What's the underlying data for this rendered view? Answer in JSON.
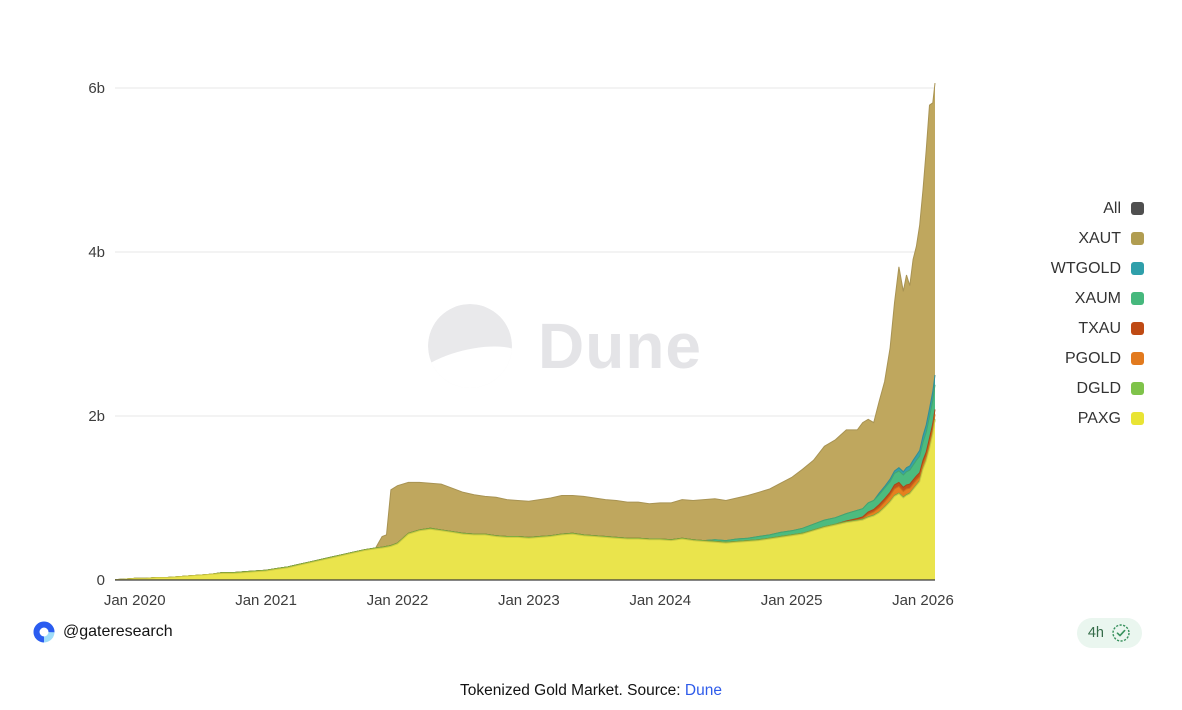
{
  "watermark": {
    "brand": "Dune"
  },
  "footer": {
    "handle": "@gateresearch",
    "badge_time": "4h"
  },
  "caption": {
    "prefix": "Tokenized Gold Market. Source: ",
    "link_text": "Dune"
  },
  "legend": [
    {
      "label": "All",
      "color": "#4f4f4f"
    },
    {
      "label": "XAUT",
      "color": "#b19d51"
    },
    {
      "label": "WTGOLD",
      "color": "#2f9faa"
    },
    {
      "label": "XAUM",
      "color": "#46b87d"
    },
    {
      "label": "TXAU",
      "color": "#bf4a14"
    },
    {
      "label": "PGOLD",
      "color": "#e27a1e"
    },
    {
      "label": "DGLD",
      "color": "#7fc34a"
    },
    {
      "label": "PAXG",
      "color": "#e9e434"
    }
  ],
  "chart_data": {
    "type": "area",
    "stacked": true,
    "title": "Tokenized Gold Market",
    "x_unit": "months since Jan 2020",
    "values_unit": "USD billions (market cap)",
    "values_note": "series values are right-aligned to x; missing leading entries are 0",
    "legend_position": "right",
    "grid": "horizontal",
    "xlim": [
      -1.8,
      73.1
    ],
    "ylim": [
      0,
      6.2
    ],
    "x_ticks": [
      {
        "pos": 0,
        "label": "Jan 2020"
      },
      {
        "pos": 12,
        "label": "Jan 2021"
      },
      {
        "pos": 24,
        "label": "Jan 2022"
      },
      {
        "pos": 36,
        "label": "Jan 2023"
      },
      {
        "pos": 48,
        "label": "Jan 2024"
      },
      {
        "pos": 60,
        "label": "Jan 2025"
      },
      {
        "pos": 72,
        "label": "Jan 2026"
      }
    ],
    "y_ticks": [
      {
        "pos": 0,
        "label": "0"
      },
      {
        "pos": 2,
        "label": "2b"
      },
      {
        "pos": 4,
        "label": "4b"
      },
      {
        "pos": 6,
        "label": "6b"
      }
    ],
    "x": [
      -1.8,
      -1,
      0,
      1,
      2,
      3,
      4,
      5,
      6,
      7,
      8,
      9,
      10,
      11,
      12,
      13,
      14,
      15,
      16,
      17,
      18,
      19,
      20,
      21,
      22,
      22.6,
      23,
      23.4,
      24,
      25,
      26,
      27,
      28,
      29,
      30,
      31,
      32,
      33,
      34,
      35,
      36,
      37,
      38,
      39,
      40,
      41,
      42,
      43,
      44,
      45,
      46,
      47,
      48,
      49,
      50,
      51,
      52,
      53,
      54,
      55,
      56,
      57,
      58,
      59,
      60,
      61,
      62,
      63,
      64,
      65,
      66,
      66.5,
      67,
      67.5,
      68,
      68.5,
      69,
      69.4,
      69.8,
      70.2,
      70.5,
      70.8,
      71.1,
      71.4,
      71.7,
      72,
      72.3,
      72.6,
      72.9,
      73.1
    ],
    "series": [
      {
        "name": "PAXG",
        "color": "#e9e434",
        "fill": "#eae44c",
        "values": [
          0.005,
          0.01,
          0.02,
          0.02,
          0.03,
          0.03,
          0.04,
          0.05,
          0.06,
          0.07,
          0.08,
          0.08,
          0.09,
          0.1,
          0.11,
          0.13,
          0.15,
          0.18,
          0.21,
          0.24,
          0.27,
          0.3,
          0.33,
          0.36,
          0.38,
          0.39,
          0.4,
          0.41,
          0.44,
          0.56,
          0.6,
          0.62,
          0.6,
          0.58,
          0.56,
          0.55,
          0.55,
          0.53,
          0.52,
          0.52,
          0.51,
          0.52,
          0.53,
          0.55,
          0.56,
          0.54,
          0.53,
          0.52,
          0.51,
          0.5,
          0.5,
          0.49,
          0.49,
          0.48,
          0.5,
          0.48,
          0.47,
          0.46,
          0.45,
          0.46,
          0.47,
          0.48,
          0.5,
          0.52,
          0.54,
          0.56,
          0.6,
          0.64,
          0.67,
          0.7,
          0.72,
          0.73,
          0.76,
          0.78,
          0.82,
          0.88,
          0.95,
          1.02,
          1.05,
          1.0,
          1.03,
          1.05,
          1.1,
          1.15,
          1.2,
          1.35,
          1.45,
          1.6,
          1.78,
          1.95
        ]
      },
      {
        "name": "DGLD",
        "color": "#7fc34a",
        "fill": "#84c04a",
        "values": [
          0.01,
          0.01,
          0.01,
          0.01,
          0.01,
          0.01,
          0.01,
          0.01,
          0.01,
          0.01,
          0.01,
          0.01,
          0.01,
          0.01,
          0.01,
          0.01,
          0.01,
          0.01,
          0.01,
          0.01,
          0.01,
          0.01,
          0.01,
          0.01,
          0.01,
          0.01,
          0.01,
          0.01,
          0.01,
          0.01,
          0.01,
          0.01,
          0.01,
          0.01,
          0.01,
          0.01,
          0.01,
          0.01,
          0.01,
          0.01,
          0.01,
          0.01,
          0.01,
          0.01,
          0.01,
          0.01,
          0.01,
          0.01,
          0.01,
          0.01,
          0.01,
          0.01,
          0.01,
          0.01,
          0.01,
          0.01,
          0.01,
          0.01,
          0.01,
          0.01,
          0.01,
          0.01,
          0.01,
          0.01,
          0.01,
          0.01,
          0.01,
          0.01,
          0.01,
          0.01,
          0.01,
          0.01,
          0.01,
          0.01,
          0.01,
          0.01,
          0.01,
          0.01,
          0.01,
          0.01
        ]
      },
      {
        "name": "PGOLD",
        "color": "#e27a1e",
        "fill": "#e6801f",
        "values": [
          0.01,
          0.03,
          0.04,
          0.05,
          0.06,
          0.07,
          0.08,
          0.08,
          0.07,
          0.07,
          0.06,
          0.06,
          0.06,
          0.05,
          0.05,
          0.05,
          0.06,
          0.06,
          0.06
        ]
      },
      {
        "name": "TXAU",
        "color": "#bf4a14",
        "fill": "#c2521a",
        "values": [
          0.01,
          0.02,
          0.02,
          0.03,
          0.03,
          0.04,
          0.04,
          0.04,
          0.05,
          0.05,
          0.05,
          0.05,
          0.05,
          0.05,
          0.05,
          0.05,
          0.05,
          0.05,
          0.06,
          0.06,
          0.06
        ]
      },
      {
        "name": "XAUM",
        "color": "#46b87d",
        "fill": "#4cbb7f",
        "values": [
          0.02,
          0.02,
          0.03,
          0.03,
          0.04,
          0.04,
          0.05,
          0.05,
          0.06,
          0.07,
          0.08,
          0.08,
          0.09,
          0.1,
          0.1,
          0.11,
          0.11,
          0.12,
          0.13,
          0.13,
          0.14,
          0.14,
          0.15,
          0.16,
          0.17,
          0.18,
          0.19,
          0.2,
          0.22,
          0.24,
          0.26,
          0.28,
          0.3
        ]
      },
      {
        "name": "WTGOLD",
        "color": "#2f9faa",
        "fill": "#36a1a9",
        "values": [
          0.02,
          0.02,
          0.03,
          0.03,
          0.04,
          0.04,
          0.05,
          0.05,
          0.06,
          0.06,
          0.07,
          0.08,
          0.09,
          0.1,
          0.11,
          0.12
        ]
      },
      {
        "name": "XAUT",
        "color": "#b19d51",
        "fill": "#bfa75e",
        "values": [
          0.13,
          0.14,
          0.68,
          0.7,
          0.62,
          0.58,
          0.55,
          0.56,
          0.53,
          0.5,
          0.48,
          0.46,
          0.47,
          0.45,
          0.44,
          0.44,
          0.45,
          0.46,
          0.47,
          0.46,
          0.47,
          0.46,
          0.45,
          0.45,
          0.44,
          0.44,
          0.43,
          0.44,
          0.45,
          0.47,
          0.48,
          0.5,
          0.5,
          0.49,
          0.5,
          0.52,
          0.54,
          0.56,
          0.6,
          0.65,
          0.72,
          0.78,
          0.9,
          0.95,
          1.02,
          0.98,
          1.05,
          1.02,
          0.95,
          1.12,
          1.28,
          1.6,
          2.05,
          2.45,
          2.2,
          2.35,
          2.2,
          2.45,
          2.55,
          2.75,
          3.0,
          3.35,
          3.7,
          3.52,
          3.56
        ]
      }
    ]
  }
}
